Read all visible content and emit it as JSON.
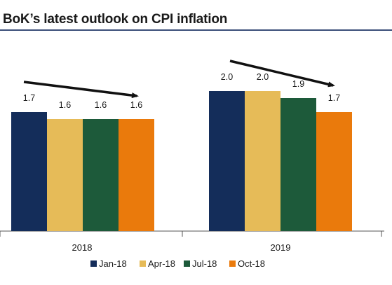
{
  "title": "BoK’s latest outlook on CPI inflation",
  "colors": {
    "title_rule": "#3b4f7a",
    "axis": "#555555",
    "arrow": "#111111"
  },
  "chart_data": {
    "type": "bar",
    "title": "BoK’s latest outlook on CPI inflation",
    "xlabel": "",
    "ylabel": "",
    "categories": [
      "2018",
      "2019"
    ],
    "ylim": [
      0,
      2.5
    ],
    "grid": false,
    "legend_position": "bottom",
    "series": [
      {
        "name": "Jan-18",
        "color": "#142d5a",
        "values": [
          1.7,
          2.0
        ],
        "labels": [
          "1.7",
          "2.0"
        ]
      },
      {
        "name": "Apr-18",
        "color": "#e6bb58",
        "values": [
          1.6,
          2.0
        ],
        "labels": [
          "1.6",
          "2.0"
        ]
      },
      {
        "name": "Jul-18",
        "color": "#1d5a3a",
        "values": [
          1.6,
          1.9
        ],
        "labels": [
          "1.6",
          "1.9"
        ]
      },
      {
        "name": "Oct-18",
        "color": "#ea7a0c",
        "values": [
          1.6,
          1.7
        ],
        "labels": [
          "1.6",
          "1.7"
        ]
      }
    ],
    "annotations": [
      {
        "type": "arrow",
        "group": "2018",
        "direction": "down"
      },
      {
        "type": "arrow",
        "group": "2019",
        "direction": "down"
      }
    ]
  }
}
